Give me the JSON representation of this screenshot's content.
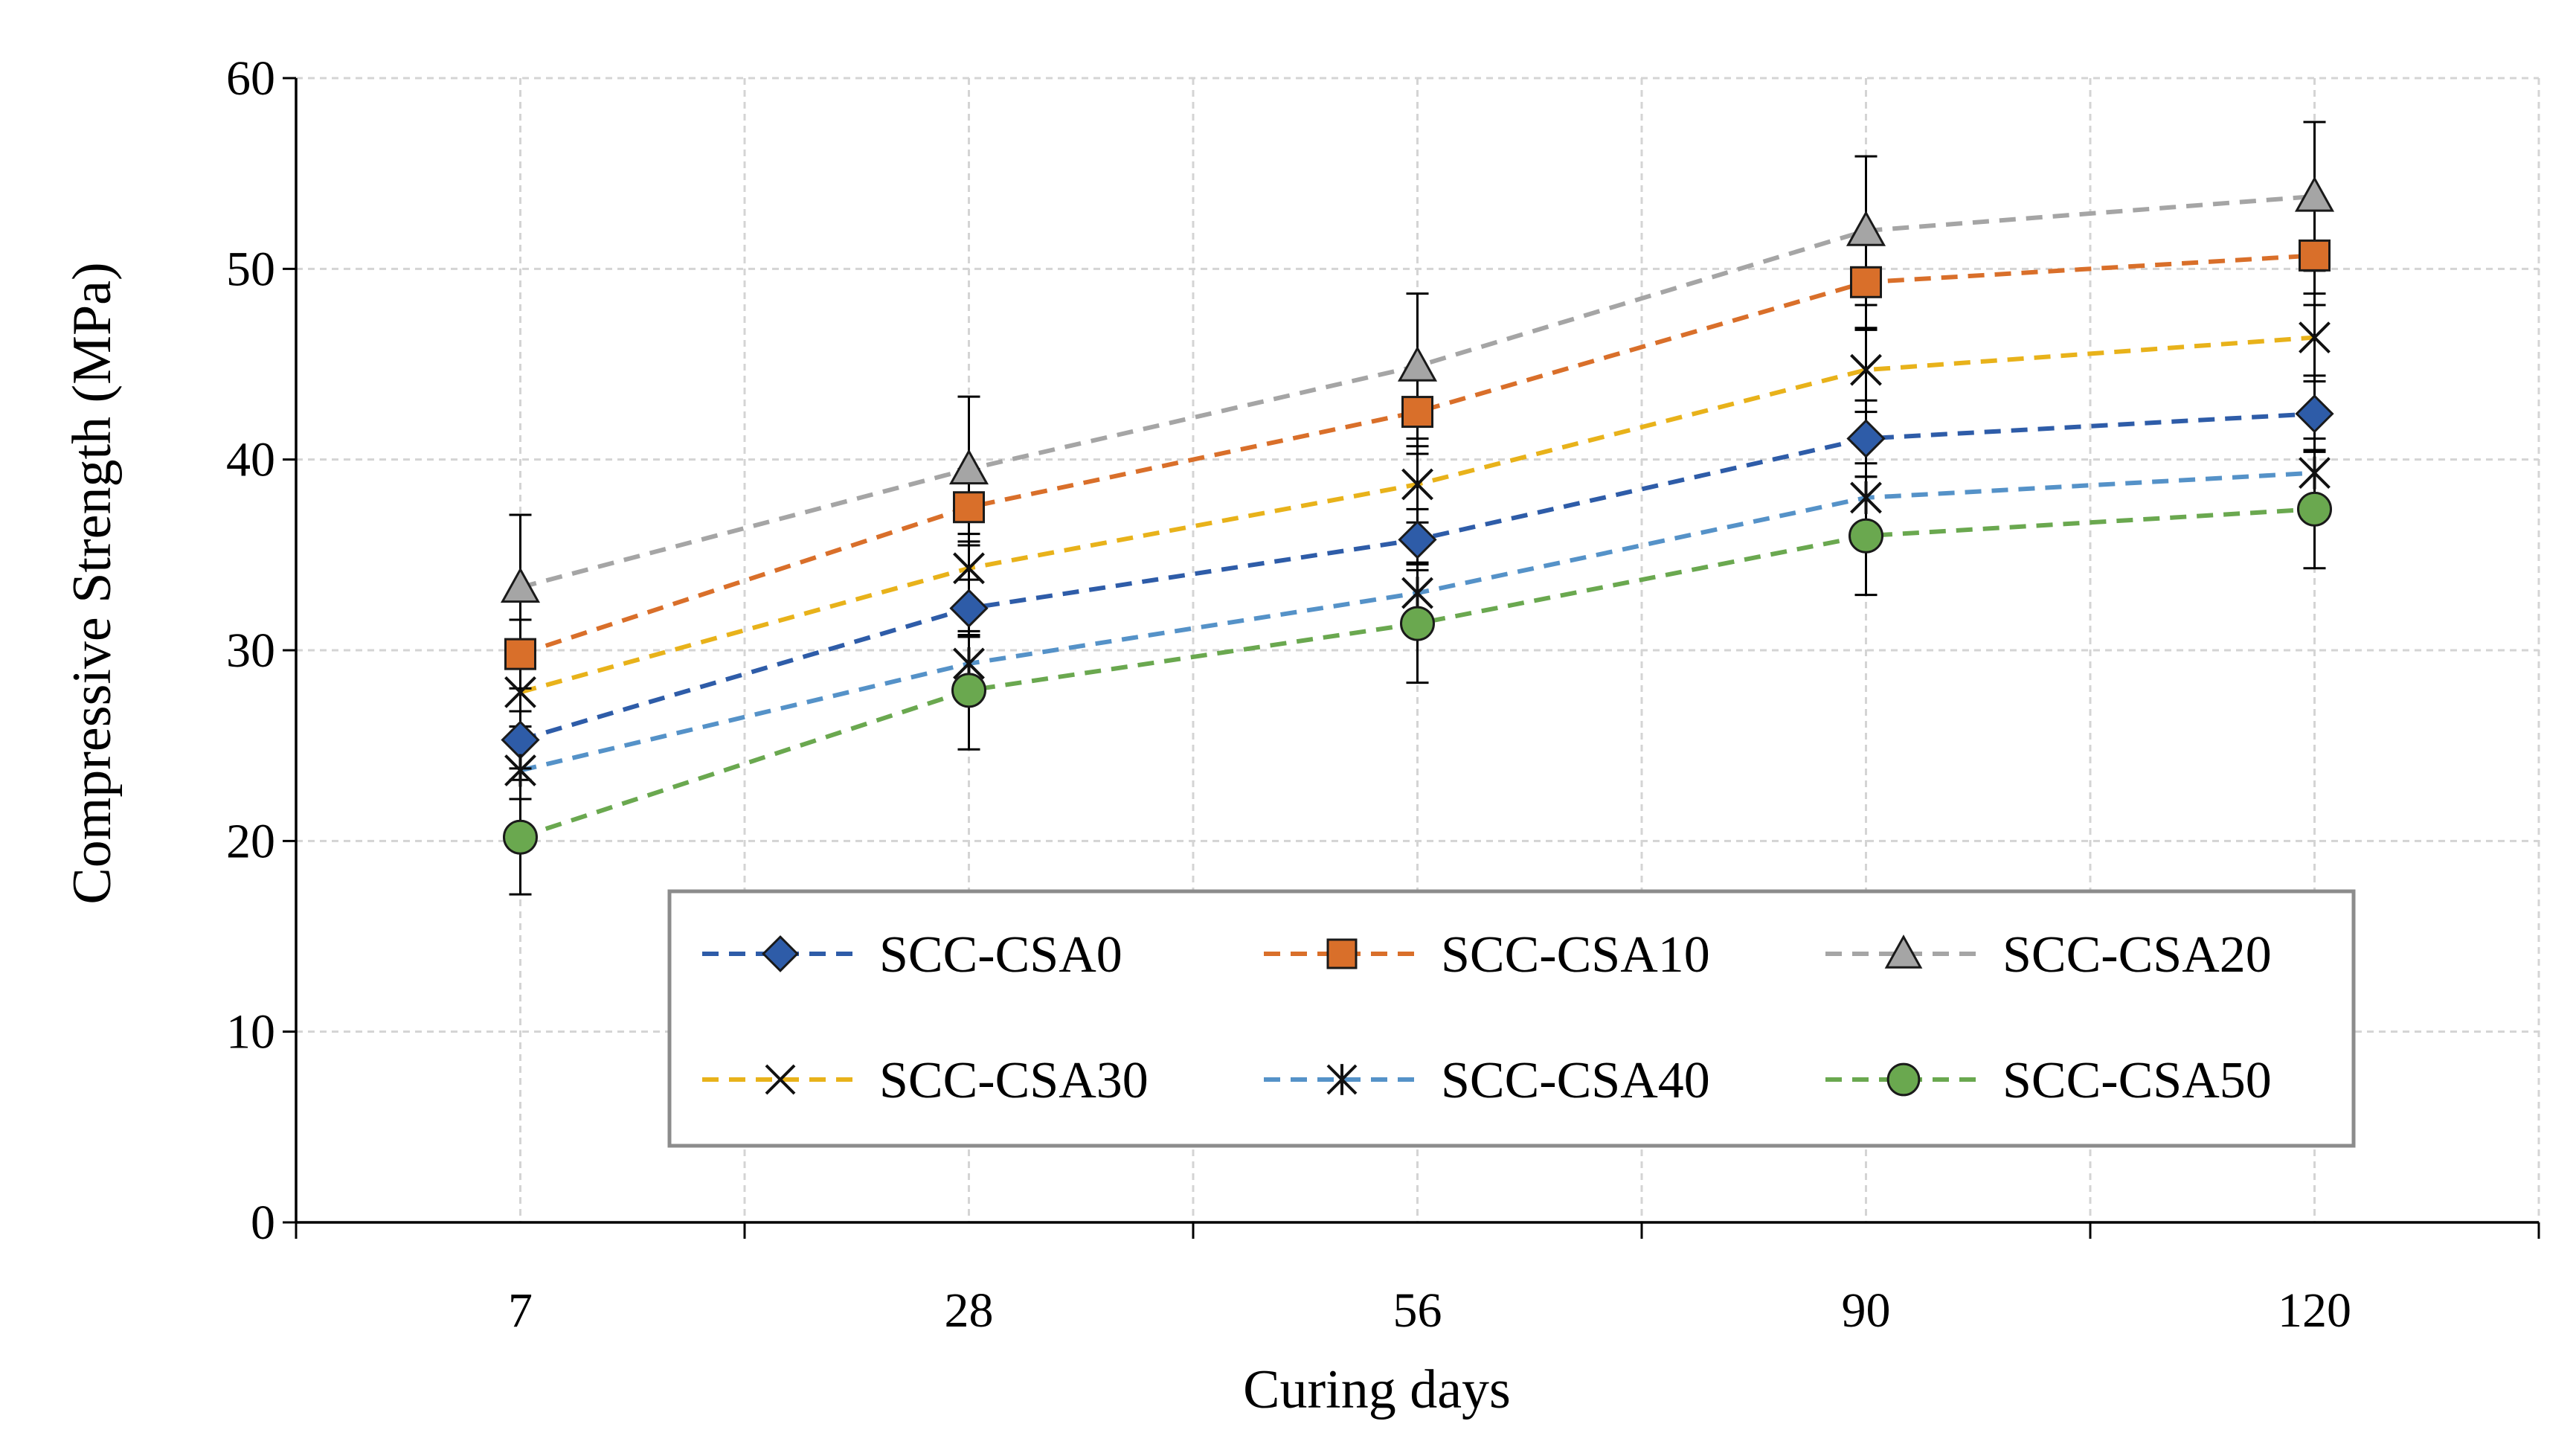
{
  "chart_data": {
    "type": "line",
    "title": "",
    "xlabel": "Curing days",
    "ylabel": "Compressive Strength (MPa)",
    "categories": [
      "7",
      "28",
      "56",
      "90",
      "120"
    ],
    "ylim": [
      0,
      60
    ],
    "yticks": [
      0,
      10,
      20,
      30,
      40,
      50,
      60
    ],
    "grid": true,
    "legend_position": "bottom-right",
    "series": [
      {
        "name": "SCC-CSA0",
        "color": "#2e5ca8",
        "marker": "diamond",
        "values": [
          25.3,
          32.2,
          35.8,
          41.1,
          42.4
        ],
        "errors": [
          1.5,
          1.5,
          1.6,
          2.0,
          2.0
        ]
      },
      {
        "name": "SCC-CSA10",
        "color": "#d96f2a",
        "marker": "square",
        "values": [
          29.8,
          37.5,
          42.5,
          49.3,
          50.7
        ],
        "errors": [
          1.8,
          2.0,
          2.2,
          2.5,
          2.6
        ]
      },
      {
        "name": "SCC-CSA20",
        "color": "#a5a5a5",
        "marker": "triangle",
        "values": [
          33.3,
          39.5,
          44.9,
          52.0,
          53.8
        ],
        "errors": [
          3.8,
          3.8,
          3.8,
          3.9,
          3.9
        ]
      },
      {
        "name": "SCC-CSA30",
        "color": "#e8b21a",
        "marker": "x",
        "values": [
          27.8,
          34.3,
          38.7,
          44.7,
          46.4
        ],
        "errors": [
          1.8,
          1.8,
          2.0,
          2.2,
          2.3
        ]
      },
      {
        "name": "SCC-CSA40",
        "color": "#5592c8",
        "marker": "asterisk",
        "values": [
          23.7,
          29.3,
          33.0,
          38.0,
          39.3
        ],
        "errors": [
          1.5,
          1.5,
          1.6,
          1.8,
          1.8
        ]
      },
      {
        "name": "SCC-CSA50",
        "color": "#6aa84f",
        "marker": "circle",
        "values": [
          20.2,
          27.9,
          31.4,
          36.0,
          37.4
        ],
        "errors": [
          3.0,
          3.1,
          3.1,
          3.1,
          3.1
        ]
      }
    ]
  }
}
